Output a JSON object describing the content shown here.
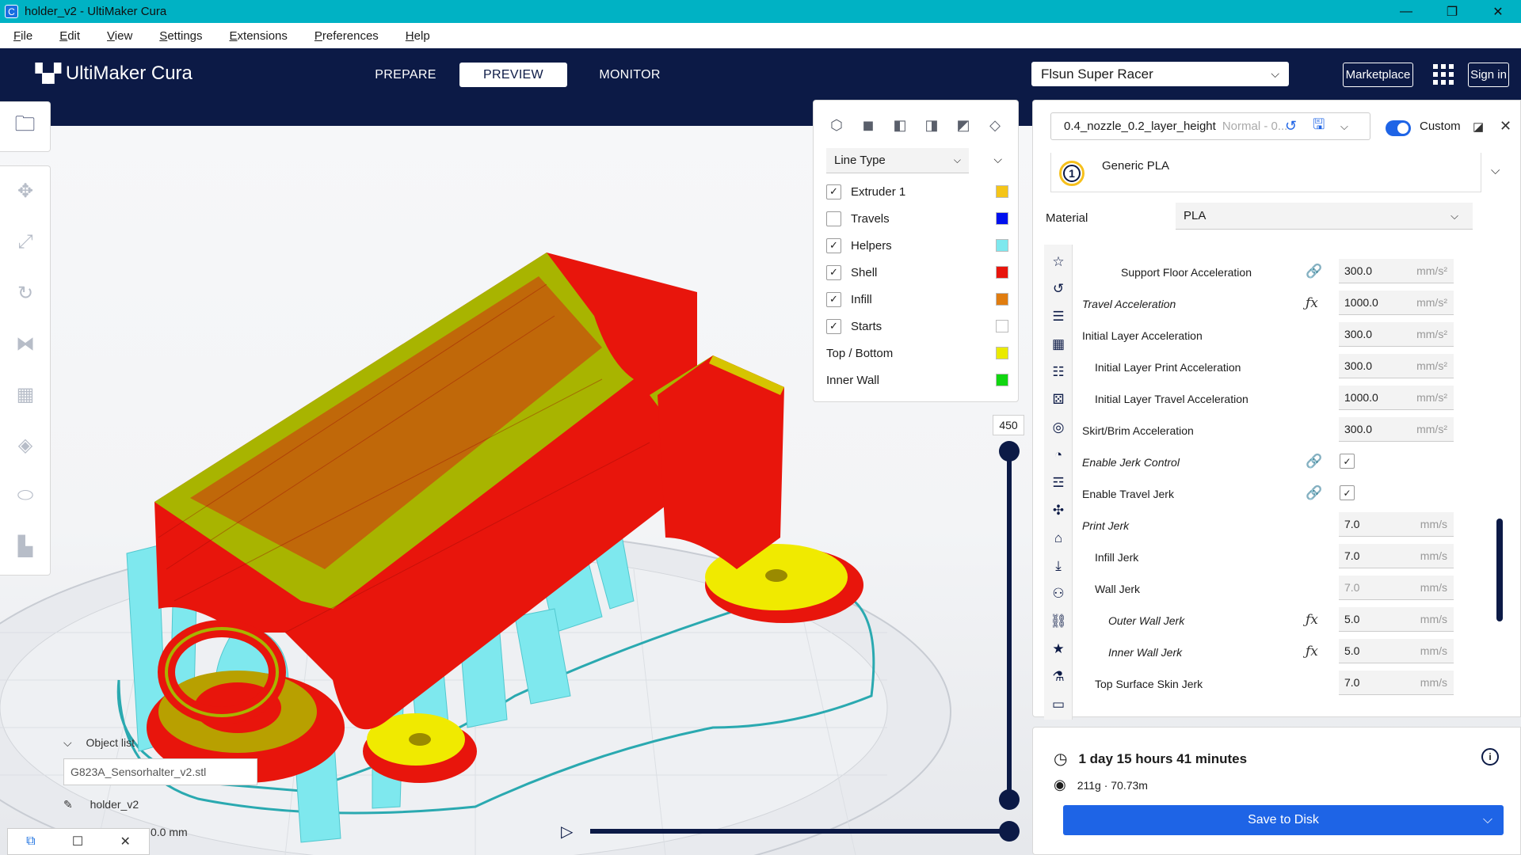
{
  "window": {
    "title": "holder_v2 - UltiMaker Cura",
    "app_icon": "C",
    "controls": [
      "—",
      "❐",
      "✕"
    ]
  },
  "menu": [
    "File",
    "Edit",
    "View",
    "Settings",
    "Extensions",
    "Preferences",
    "Help"
  ],
  "header": {
    "logo": "UltiMaker Cura",
    "stages": [
      "PREPARE",
      "PREVIEW",
      "MONITOR"
    ],
    "active_stage": "PREVIEW",
    "printer": "Flsun Super Racer",
    "marketplace": "Marketplace",
    "signin": "Sign in"
  },
  "legend": {
    "view_mode": "Line Type",
    "items": [
      {
        "label": "Extruder 1",
        "checked": true,
        "color": "#f5c518"
      },
      {
        "label": "Travels",
        "checked": false,
        "color": "#0010ee"
      },
      {
        "label": "Helpers",
        "checked": true,
        "color": "#7ee8ee"
      },
      {
        "label": "Shell",
        "checked": true,
        "color": "#e8150c"
      },
      {
        "label": "Infill",
        "checked": true,
        "color": "#e07d10"
      },
      {
        "label": "Starts",
        "checked": false,
        "color": "#ffffff"
      },
      {
        "label": "Top / Bottom",
        "color": "#eaea00"
      },
      {
        "label": "Inner Wall",
        "color": "#11d611"
      }
    ]
  },
  "layer_slider": {
    "current_layer": "450"
  },
  "objects": {
    "list_label": "Object list",
    "file": "G823A_Sensorhalter_v2.stl",
    "name": "holder_v2",
    "dims_partial": "0.0 mm"
  },
  "print_settings": {
    "profile_name": "0.4_nozzle_0.2_layer_height",
    "profile_muted": "Normal - 0...",
    "mode": "Custom",
    "extruder_number": "1",
    "extruder_material": "Generic PLA",
    "material_label": "Material",
    "material_value": "PLA",
    "rows": [
      {
        "label": "Support Floor Acceleration",
        "indent": 3,
        "italic": false,
        "icon": "link",
        "value": "300.0",
        "unit": "mm/s²"
      },
      {
        "label": "Travel Acceleration",
        "indent": 0,
        "italic": true,
        "icon": "fx",
        "value": "1000.0",
        "unit": "mm/s²"
      },
      {
        "label": "Initial Layer Acceleration",
        "indent": 0,
        "italic": false,
        "icon": "",
        "value": "300.0",
        "unit": "mm/s²"
      },
      {
        "label": "Initial Layer Print Acceleration",
        "indent": 1,
        "italic": false,
        "icon": "",
        "value": "300.0",
        "unit": "mm/s²"
      },
      {
        "label": "Initial Layer Travel Acceleration",
        "indent": 1,
        "italic": false,
        "icon": "",
        "value": "1000.0",
        "unit": "mm/s²"
      },
      {
        "label": "Skirt/Brim Acceleration",
        "indent": 0,
        "italic": false,
        "icon": "",
        "value": "300.0",
        "unit": "mm/s²"
      },
      {
        "label": "Enable Jerk Control",
        "indent": 0,
        "italic": true,
        "icon": "link",
        "checkbox": true
      },
      {
        "label": "Enable Travel Jerk",
        "indent": 0,
        "italic": false,
        "icon": "link",
        "checkbox": true
      },
      {
        "label": "Print Jerk",
        "indent": 0,
        "italic": true,
        "icon": "",
        "value": "7.0",
        "unit": "mm/s"
      },
      {
        "label": "Infill Jerk",
        "indent": 1,
        "italic": false,
        "icon": "",
        "value": "7.0",
        "unit": "mm/s"
      },
      {
        "label": "Wall Jerk",
        "indent": 1,
        "italic": false,
        "icon": "",
        "value": "7.0",
        "unit": "mm/s",
        "dim": true
      },
      {
        "label": "Outer Wall Jerk",
        "indent": 2,
        "italic": true,
        "icon": "fx",
        "value": "5.0",
        "unit": "mm/s"
      },
      {
        "label": "Inner Wall Jerk",
        "indent": 2,
        "italic": true,
        "icon": "fx",
        "value": "5.0",
        "unit": "mm/s"
      },
      {
        "label": "Top Surface Skin Jerk",
        "indent": 1,
        "italic": false,
        "icon": "",
        "value": "7.0",
        "unit": "mm/s"
      }
    ]
  },
  "estimate": {
    "time": "1 day 15 hours 41 minutes",
    "material_use": "211g · 70.73m",
    "save_button": "Save to Disk"
  }
}
